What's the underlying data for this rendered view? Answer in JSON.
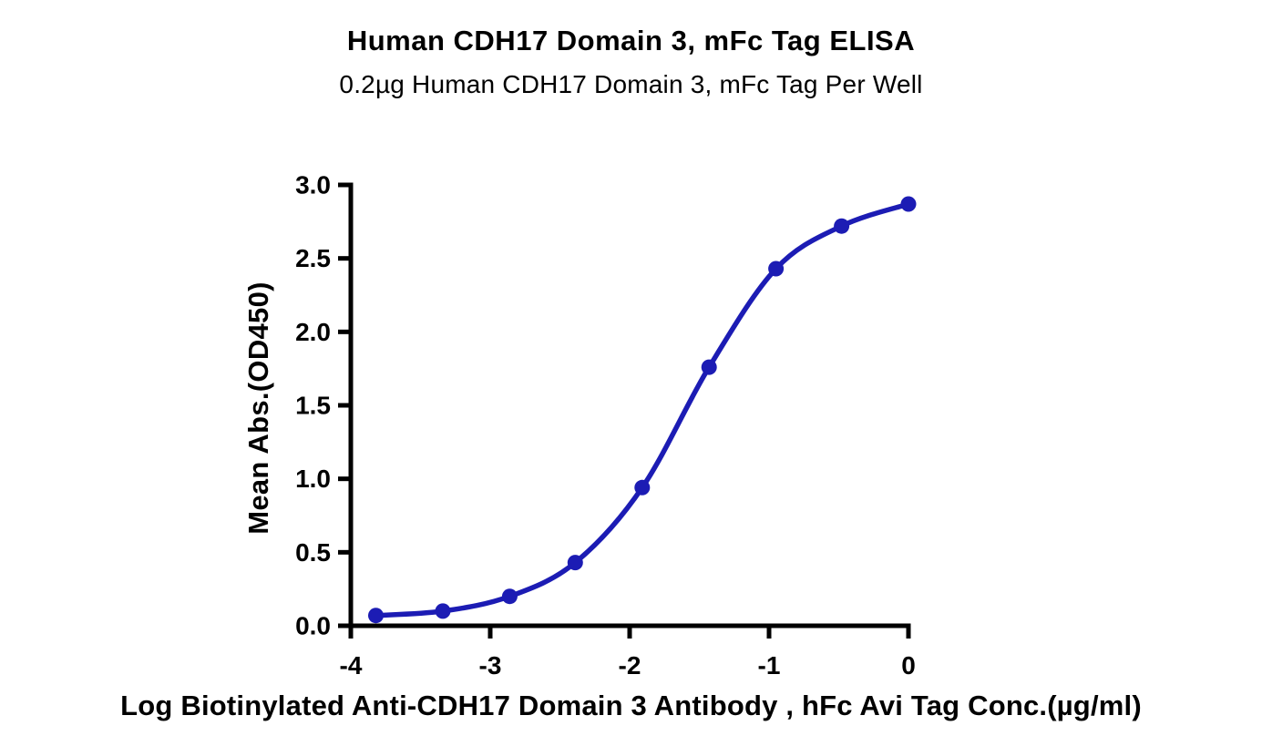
{
  "chart_data": {
    "type": "line",
    "title": "Human CDH17 Domain 3, mFc Tag ELISA",
    "subtitle": "0.2µg Human CDH17 Domain 3, mFc Tag Per Well",
    "xlabel": "Log Biotinylated Anti-CDH17 Domain 3 Antibody , hFc Avi Tag Conc.(µg/ml)",
    "ylabel": "Mean Abs.(OD450)",
    "xlim": [
      -4,
      0
    ],
    "ylim": [
      0,
      3
    ],
    "x_ticks": [
      -4,
      -3,
      -2,
      -1,
      0
    ],
    "x_tick_labels": [
      "-4",
      "-3",
      "-2",
      "-1",
      "0"
    ],
    "y_ticks": [
      0,
      0.5,
      1,
      1.5,
      2,
      2.5,
      3
    ],
    "y_tick_labels": [
      "0.0",
      "0.5",
      "1.0",
      "1.5",
      "2.0",
      "2.5",
      "3.0"
    ],
    "grid": false,
    "legend": "none",
    "axis_color": "#000000",
    "series": [
      {
        "color": "#1c1cb4",
        "marker": "circle",
        "x": [
          -3.82,
          -3.34,
          -2.86,
          -2.39,
          -1.91,
          -1.43,
          -0.95,
          -0.48,
          0
        ],
        "y": [
          0.07,
          0.1,
          0.2,
          0.43,
          0.94,
          1.76,
          2.43,
          2.72,
          2.87
        ]
      }
    ]
  }
}
